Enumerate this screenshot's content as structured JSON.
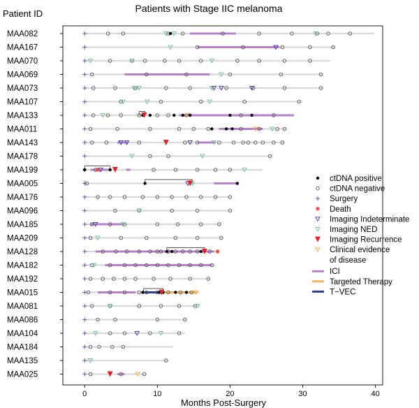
{
  "chart_data": {
    "type": "swimmer",
    "title": "Patients with Stage IIC melanoma",
    "xlabel": "Months Post-Surgery",
    "ylabel": "Patient ID",
    "xlim": [
      -3,
      41
    ],
    "xticks": [
      0,
      10,
      20,
      30,
      40
    ],
    "grid": false,
    "legend_position": "right",
    "colors": {
      "track": "#d9d9d9",
      "ici": "#b681c8",
      "targeted": "#f2b15a",
      "tvec": "#2b3e8c",
      "surgery": "#6b5fb0",
      "death": "#e8423f",
      "recurrence": "#d9262d",
      "indeterminate": "#4a46a8",
      "ned": "#7fc4a4",
      "clinical": "#f2b15a",
      "link": "#555555"
    },
    "legend": [
      {
        "key": "pos",
        "label": "ctDNA positive"
      },
      {
        "key": "neg",
        "label": "ctDNA negative"
      },
      {
        "key": "surgery",
        "label": "Surgery"
      },
      {
        "key": "death",
        "label": "Death"
      },
      {
        "key": "indet",
        "label": "Imaging Indeterminate"
      },
      {
        "key": "ned",
        "label": "Imaging NED"
      },
      {
        "key": "recur",
        "label": "Imaging Recurrence"
      },
      {
        "key": "clin",
        "label": "Clinical evidence",
        "label2": "of disease"
      },
      {
        "key": "ici",
        "label": "ICI"
      },
      {
        "key": "targeted",
        "label": "Targeted Therapy"
      },
      {
        "key": "tvec",
        "label": "T−VEC"
      }
    ],
    "patients": [
      {
        "id": "MAA082",
        "end": 39.8,
        "ici": [
          [
            14.5,
            20.8
          ]
        ],
        "neg": [
          3.2,
          5.3,
          11.5,
          13.5,
          19,
          24,
          28.5,
          32,
          33.5,
          36.5
        ],
        "pos": [
          11.8
        ],
        "ned": [
          11.2,
          12.3,
          31.8
        ],
        "indet": [],
        "recur": [],
        "clin": [],
        "death": []
      },
      {
        "id": "MAA167",
        "end": 34.5,
        "ici": [
          [
            15.5,
            26.8
          ]
        ],
        "neg": [
          15.5,
          21.8,
          27.2,
          31,
          34.2
        ],
        "pos": [],
        "ned": [
          11.8
        ],
        "indet": [
          26.3
        ],
        "recur": [],
        "clin": [],
        "death": []
      },
      {
        "id": "MAA070",
        "end": 33.8,
        "ici": [],
        "neg": [
          3.5,
          6.5,
          8.3,
          11,
          13,
          16,
          21,
          24,
          27.5,
          31
        ],
        "pos": [],
        "ned": [
          0.8,
          6.5,
          17.5
        ],
        "indet": [],
        "recur": [],
        "clin": [],
        "death": []
      },
      {
        "id": "MAA069",
        "end": 32.8,
        "ici": [
          [
            5.5,
            17.2
          ]
        ],
        "neg": [
          1,
          8.5,
          14,
          20,
          27,
          32.5
        ],
        "pos": [],
        "ned": [
          18.8
        ],
        "indet": [],
        "recur": [],
        "clin": [],
        "death": []
      },
      {
        "id": "MAA073",
        "end": 32.8,
        "ici": [],
        "neg": [
          1.2,
          4.2,
          7,
          11.2,
          14.5,
          19.5,
          23.2,
          27.5,
          32.5
        ],
        "pos": [],
        "ned": [
          6.8,
          7.5,
          17.5
        ],
        "indet": [
          17.8,
          18.8,
          23
        ],
        "recur": [],
        "clin": [],
        "death": []
      },
      {
        "id": "MAA107",
        "end": 30,
        "ici": [],
        "neg": [
          5,
          10.5,
          16,
          22,
          29.5
        ],
        "pos": [],
        "ned": [
          5.3,
          8.6,
          17.2
        ],
        "indet": [],
        "recur": [],
        "clin": [],
        "death": []
      },
      {
        "id": "MAA133",
        "end": 28.8,
        "ici": [
          [
            13,
            28.8
          ]
        ],
        "neg": [
          1.2,
          3.2,
          5,
          7.5,
          10,
          11.5,
          14,
          21.5,
          26
        ],
        "pos": [
          8,
          9,
          12.3,
          13.5,
          14.5,
          20,
          23
        ],
        "ned": [
          2.5
        ],
        "indet": [],
        "recur": [
          8.2
        ],
        "clin": [
          14.2
        ],
        "death": [],
        "links": [
          [
            7.5,
            8.3
          ]
        ]
      },
      {
        "id": "MAA011",
        "end": 27.8,
        "ici": [
          [
            18.5,
            24.5
          ]
        ],
        "neg": [
          0.8,
          4.5,
          9,
          13,
          15,
          17,
          21.5,
          24,
          26.5,
          27.5
        ],
        "pos": [
          17.5,
          19.5,
          20.3
        ],
        "ned": [
          25.8
        ],
        "indet": [],
        "recur": [],
        "clin": [
          23.5
        ],
        "death": []
      },
      {
        "id": "MAA143",
        "end": 27.5,
        "ici": [
          [
            4.5,
            6
          ],
          [
            15.5,
            18
          ]
        ],
        "neg": [
          1,
          3,
          7.5,
          13.8,
          15.5,
          18.5,
          20.5,
          21.8,
          22.5,
          23.5,
          24.5,
          26,
          27.2
        ],
        "pos": [],
        "ned": [
          17.8
        ],
        "indet": [
          5,
          5.8,
          14.5
        ],
        "recur": [
          11.2
        ],
        "clin": [],
        "death": []
      },
      {
        "id": "MAA178",
        "end": 25.8,
        "ici": [],
        "neg": [
          9,
          11.5,
          25.5
        ],
        "pos": [],
        "ned": [
          6.5,
          16.2
        ],
        "indet": [],
        "recur": [],
        "clin": [],
        "death": []
      },
      {
        "id": "MAA199",
        "end": 24.5,
        "ici": [
          [
            0.8,
            3.5
          ],
          [
            5.7,
            6.3
          ]
        ],
        "neg": [
          1.5,
          9.5,
          12.5,
          15.5,
          18,
          20
        ],
        "pos": [
          0,
          3.5
        ],
        "ned": [
          22
        ],
        "indet": [
          2.2
        ],
        "recur": [
          4.2
        ],
        "clin": [],
        "death": [
          1.8
        ],
        "links": [
          [
            0,
            3.5
          ]
        ]
      },
      {
        "id": "MAA005",
        "end": 21.2,
        "ici": [
          [
            17.8,
            21
          ]
        ],
        "neg": [
          0.3
        ],
        "pos": [
          8.3,
          21
        ],
        "ned": [
          14.8
        ],
        "indet": [
          14.2
        ],
        "recur": [
          14.5
        ],
        "clin": [],
        "death": [],
        "links": [
          [
            8.3,
            14.8
          ]
        ]
      },
      {
        "id": "MAA176",
        "end": 20.2,
        "ici": [],
        "neg": [
          1.8,
          3.5,
          5.5,
          8,
          10,
          12,
          14,
          16,
          18,
          20
        ],
        "pos": [],
        "ned": [],
        "indet": [],
        "recur": [],
        "clin": [],
        "death": []
      },
      {
        "id": "MAA096",
        "end": 20.2,
        "ici": [],
        "neg": [
          4.2,
          7.5,
          12,
          15.5,
          20
        ],
        "pos": [],
        "ned": [
          7.5
        ],
        "indet": [],
        "recur": [],
        "clin": [],
        "death": []
      },
      {
        "id": "MAA185",
        "end": 18.8,
        "ici": [
          [
            0.8,
            5.3
          ]
        ],
        "neg": [
          1,
          3.5,
          5.5,
          10,
          12.8,
          16,
          18.5
        ],
        "pos": [],
        "ned": [
          5.3
        ],
        "indet": [
          1.5
        ],
        "recur": [],
        "clin": [],
        "death": []
      },
      {
        "id": "MAA209",
        "end": 19,
        "ici": [],
        "neg": [
          0.8,
          5,
          8.5,
          12.5,
          15.5,
          18.8
        ],
        "pos": [],
        "ned": [
          1.8
        ],
        "indet": [],
        "recur": [],
        "clin": [],
        "death": []
      },
      {
        "id": "MAA128",
        "end": 18.5,
        "ici": [
          [
            1.5,
            17.8
          ]
        ],
        "neg": [
          2.5,
          4.3,
          5.8,
          7.5,
          9,
          10,
          10.5,
          11.5,
          12.5,
          13.5,
          14.5,
          15.5,
          17.2
        ],
        "pos": [
          11.3,
          12,
          16
        ],
        "ned": [],
        "indet": [],
        "recur": [
          16.5
        ],
        "clin": [],
        "death": [
          18.3
        ],
        "links": [
          [
            11.3,
            16.5
          ]
        ]
      },
      {
        "id": "MAA182",
        "end": 18,
        "ici": [
          [
            2.8,
            17.5
          ]
        ],
        "neg": [
          1,
          3.5,
          5.5,
          7,
          8.5,
          10,
          11.5,
          13,
          14.5,
          16,
          17.5
        ],
        "pos": [],
        "ned": [
          1.3
        ],
        "indet": [],
        "recur": [],
        "clin": [],
        "death": []
      },
      {
        "id": "MAA192",
        "end": 17.2,
        "ici": [],
        "neg": [
          0.8,
          2.5,
          4,
          5.5,
          7,
          9.5,
          11.8,
          14.5,
          17
        ],
        "pos": [],
        "ned": [],
        "indet": [],
        "recur": [],
        "clin": [],
        "death": []
      },
      {
        "id": "MAA015",
        "end": 15.8,
        "ici": [
          [
            1.8,
            7
          ]
        ],
        "targeted": [
          [
            11,
            15.5
          ]
        ],
        "tvec": [
          [
            8.2,
            10.5
          ]
        ],
        "neg": [
          0.5,
          3.5,
          5.5,
          7.5,
          8.5,
          10,
          11.5,
          13.2,
          14.7
        ],
        "pos": [
          8,
          10.3,
          10.8,
          12.5,
          14
        ],
        "ned": [],
        "indet": [],
        "recur": [
          10.6
        ],
        "clin": [
          15.3
        ],
        "death": [],
        "links": [
          [
            8.1,
            10.8
          ]
        ]
      },
      {
        "id": "MAA081",
        "end": 15.8,
        "ici": [],
        "neg": [
          1,
          3.5,
          7.5,
          10.5,
          13,
          15.2
        ],
        "pos": [],
        "ned": [
          3.5,
          15.5
        ],
        "indet": [],
        "recur": [],
        "clin": [],
        "death": []
      },
      {
        "id": "MAA086",
        "end": 14,
        "ici": [],
        "neg": [
          1.8,
          4.2,
          10,
          13.8
        ],
        "pos": [],
        "ned": [],
        "indet": [],
        "recur": [],
        "clin": [],
        "death": []
      },
      {
        "id": "MAA104",
        "end": 13.8,
        "ici": [],
        "neg": [
          3.5,
          5.5,
          9,
          13
        ],
        "pos": [],
        "ned": [
          1.5,
          10.5
        ],
        "indet": [
          7.2
        ],
        "recur": [],
        "clin": [],
        "death": []
      },
      {
        "id": "MAA184",
        "end": 12.2,
        "ici": [],
        "neg": [
          0.8,
          2,
          3.8,
          5.3
        ],
        "pos": [],
        "ned": [],
        "indet": [],
        "recur": [],
        "clin": [],
        "death": []
      },
      {
        "id": "MAA135",
        "end": 11.5,
        "ici": [],
        "neg": [
          11.2
        ],
        "pos": [],
        "ned": [
          0.8
        ],
        "indet": [],
        "recur": [],
        "clin": [],
        "death": []
      },
      {
        "id": "MAA025",
        "end": 8.5,
        "ici": [
          [
            4.5,
            5.5
          ]
        ],
        "neg": [
          0.8,
          5,
          8.2
        ],
        "pos": [],
        "ned": [],
        "indet": [],
        "recur": [
          3.5
        ],
        "clin": [
          7.3
        ],
        "death": []
      }
    ]
  }
}
